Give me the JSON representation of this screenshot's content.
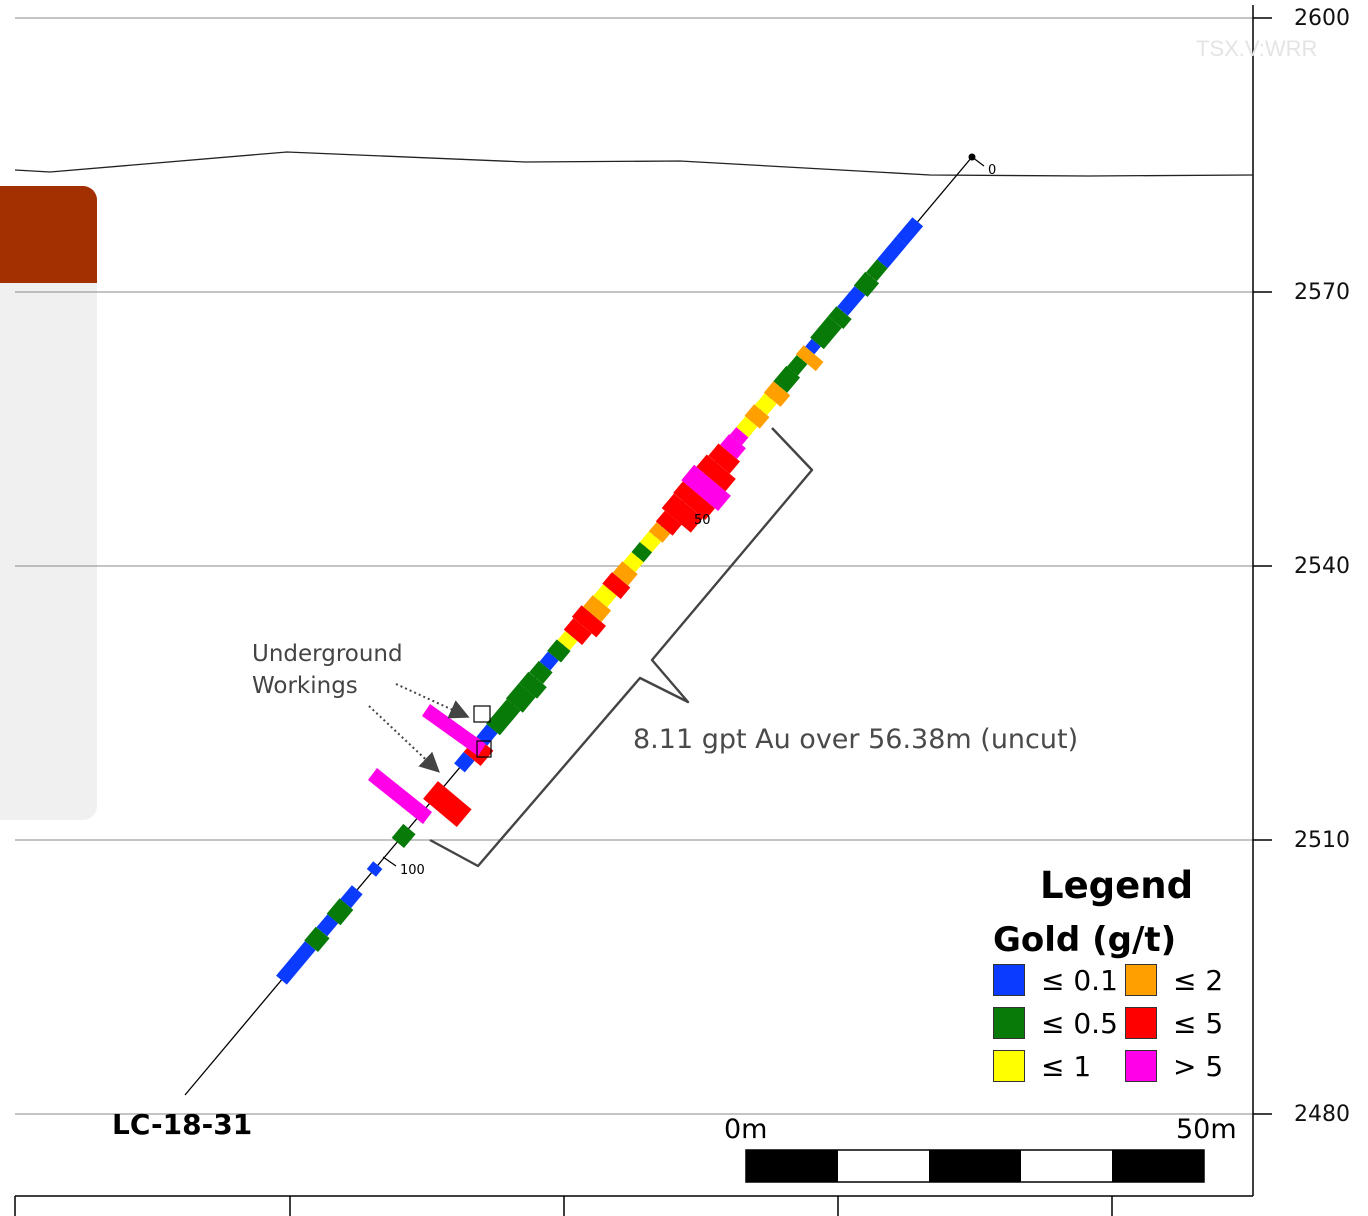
{
  "watermark": "TSX.V:WRR",
  "elevations": [
    "2600",
    "2570",
    "2540",
    "2510",
    "2480"
  ],
  "annotation": {
    "line1": "Underground",
    "line2": "Workings"
  },
  "intercept": "8.11 gpt Au over 56.38m (uncut)",
  "hole_id": "LC-18-31",
  "depth_labels": [
    "0",
    "50",
    "100"
  ],
  "scale": {
    "start": "0m",
    "end": "50m"
  },
  "legend": {
    "title": "Legend",
    "subtitle": "Gold (g/t)",
    "items": [
      {
        "label": "≤ 0.1",
        "color": "#0a3bff"
      },
      {
        "label": "≤ 0.5",
        "color": "#087a08"
      },
      {
        "label": "≤ 1",
        "color": "#ffff00"
      },
      {
        "label": "≤ 2",
        "color": "#ffa000"
      },
      {
        "label": "≤ 5",
        "color": "#ff0000"
      },
      {
        "label": "> 5",
        "color": "#ff00e8"
      }
    ]
  },
  "colors": {
    "panel_accent": "#a33000",
    "panel_bg": "#f0f0f0"
  }
}
